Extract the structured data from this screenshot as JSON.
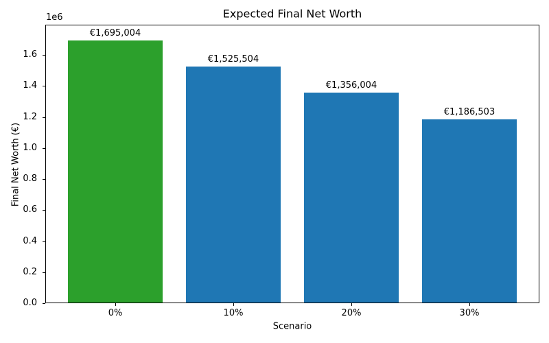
{
  "chart_data": {
    "type": "bar",
    "title": "Expected Final Net Worth",
    "xlabel": "Scenario",
    "ylabel": "Final Net Worth (€)",
    "categories": [
      "0%",
      "10%",
      "20%",
      "30%"
    ],
    "values": [
      1695004,
      1525504,
      1356004,
      1186503
    ],
    "bar_labels": [
      "€1,695,004",
      "€1,525,504",
      "€1,356,004",
      "€1,186,503"
    ],
    "bar_colors": [
      "#2ca02c",
      "#1f77b4",
      "#1f77b4",
      "#1f77b4"
    ],
    "highlight_color": "#2ca02c",
    "default_bar_color": "#1f77b4",
    "ylim": [
      0,
      1795000
    ],
    "ytick_labels": [
      "0.0",
      "0.2",
      "0.4",
      "0.6",
      "0.8",
      "1.0",
      "1.2",
      "1.4",
      "1.6"
    ],
    "ytick_values": [
      0,
      200000,
      400000,
      600000,
      800000,
      1000000,
      1200000,
      1400000,
      1600000
    ],
    "y_offset_label": "1e6",
    "grid": false,
    "legend": null
  }
}
